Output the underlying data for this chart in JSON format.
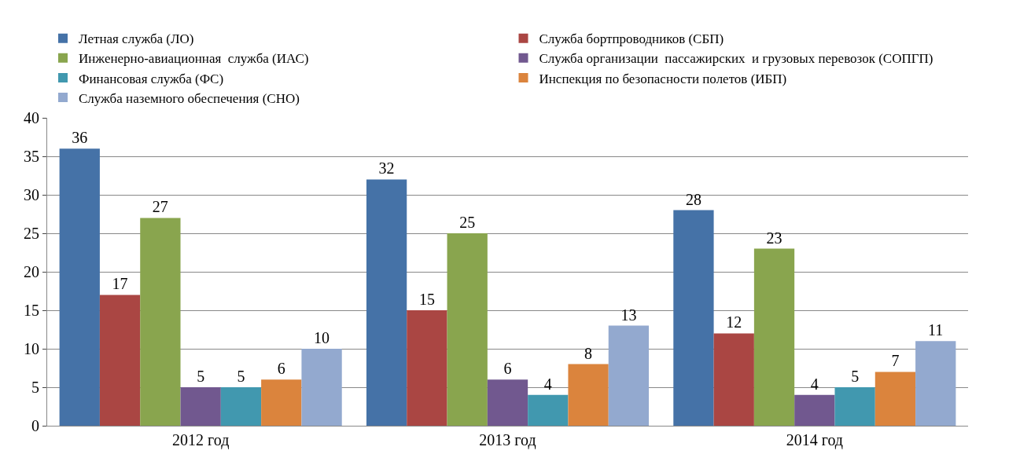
{
  "chart_data": {
    "type": "bar",
    "categories": [
      "2012 год",
      "2013 год",
      "2014 год"
    ],
    "series": [
      {
        "name": "Летная служба (ЛО)",
        "color": "#4572a7",
        "values": [
          36,
          32,
          28
        ]
      },
      {
        "name": "Служба бортпроводников (СБП)",
        "color": "#aa4643",
        "values": [
          17,
          15,
          12
        ]
      },
      {
        "name": "Инженерно-авиационная  служба (ИАС)",
        "color": "#89a54e",
        "values": [
          27,
          25,
          23
        ]
      },
      {
        "name": "Служба организации  пассажирских  и грузовых перевозок (СОПГП)",
        "color": "#71588f",
        "values": [
          5,
          6,
          4
        ]
      },
      {
        "name": "Финансовая служба (ФС)",
        "color": "#4198af",
        "values": [
          5,
          4,
          5
        ]
      },
      {
        "name": "Инспекция по безопасности полетов (ИБП)",
        "color": "#db843d",
        "values": [
          6,
          8,
          7
        ]
      },
      {
        "name": "Служба наземного обеспечения (СНО)",
        "color": "#93a9cf",
        "values": [
          10,
          13,
          11
        ]
      }
    ],
    "ylim": [
      0,
      40
    ],
    "yticks": [
      0,
      5,
      10,
      15,
      20,
      25,
      30,
      35,
      40
    ],
    "grid": "y",
    "legend": "top",
    "data_labels": true
  }
}
